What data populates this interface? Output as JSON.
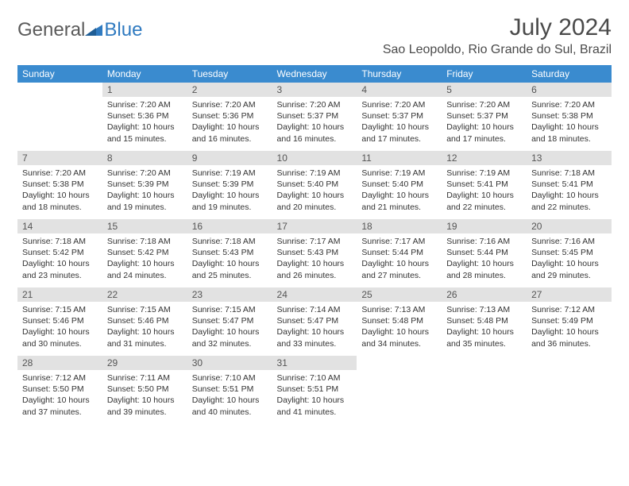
{
  "brand": {
    "part1": "General",
    "part2": "Blue"
  },
  "title": "July 2024",
  "location": "Sao Leopoldo, Rio Grande do Sul, Brazil",
  "colors": {
    "header_bg": "#3a8bcf",
    "daynum_bg": "#e2e2e2",
    "brand_blue": "#2f7ac0",
    "text": "#333333"
  },
  "dow": [
    "Sunday",
    "Monday",
    "Tuesday",
    "Wednesday",
    "Thursday",
    "Friday",
    "Saturday"
  ],
  "weeks": [
    [
      {
        "n": "",
        "sr": "",
        "ss": "",
        "dl": ""
      },
      {
        "n": "1",
        "sr": "Sunrise: 7:20 AM",
        "ss": "Sunset: 5:36 PM",
        "dl": "Daylight: 10 hours and 15 minutes."
      },
      {
        "n": "2",
        "sr": "Sunrise: 7:20 AM",
        "ss": "Sunset: 5:36 PM",
        "dl": "Daylight: 10 hours and 16 minutes."
      },
      {
        "n": "3",
        "sr": "Sunrise: 7:20 AM",
        "ss": "Sunset: 5:37 PM",
        "dl": "Daylight: 10 hours and 16 minutes."
      },
      {
        "n": "4",
        "sr": "Sunrise: 7:20 AM",
        "ss": "Sunset: 5:37 PM",
        "dl": "Daylight: 10 hours and 17 minutes."
      },
      {
        "n": "5",
        "sr": "Sunrise: 7:20 AM",
        "ss": "Sunset: 5:37 PM",
        "dl": "Daylight: 10 hours and 17 minutes."
      },
      {
        "n": "6",
        "sr": "Sunrise: 7:20 AM",
        "ss": "Sunset: 5:38 PM",
        "dl": "Daylight: 10 hours and 18 minutes."
      }
    ],
    [
      {
        "n": "7",
        "sr": "Sunrise: 7:20 AM",
        "ss": "Sunset: 5:38 PM",
        "dl": "Daylight: 10 hours and 18 minutes."
      },
      {
        "n": "8",
        "sr": "Sunrise: 7:20 AM",
        "ss": "Sunset: 5:39 PM",
        "dl": "Daylight: 10 hours and 19 minutes."
      },
      {
        "n": "9",
        "sr": "Sunrise: 7:19 AM",
        "ss": "Sunset: 5:39 PM",
        "dl": "Daylight: 10 hours and 19 minutes."
      },
      {
        "n": "10",
        "sr": "Sunrise: 7:19 AM",
        "ss": "Sunset: 5:40 PM",
        "dl": "Daylight: 10 hours and 20 minutes."
      },
      {
        "n": "11",
        "sr": "Sunrise: 7:19 AM",
        "ss": "Sunset: 5:40 PM",
        "dl": "Daylight: 10 hours and 21 minutes."
      },
      {
        "n": "12",
        "sr": "Sunrise: 7:19 AM",
        "ss": "Sunset: 5:41 PM",
        "dl": "Daylight: 10 hours and 22 minutes."
      },
      {
        "n": "13",
        "sr": "Sunrise: 7:18 AM",
        "ss": "Sunset: 5:41 PM",
        "dl": "Daylight: 10 hours and 22 minutes."
      }
    ],
    [
      {
        "n": "14",
        "sr": "Sunrise: 7:18 AM",
        "ss": "Sunset: 5:42 PM",
        "dl": "Daylight: 10 hours and 23 minutes."
      },
      {
        "n": "15",
        "sr": "Sunrise: 7:18 AM",
        "ss": "Sunset: 5:42 PM",
        "dl": "Daylight: 10 hours and 24 minutes."
      },
      {
        "n": "16",
        "sr": "Sunrise: 7:18 AM",
        "ss": "Sunset: 5:43 PM",
        "dl": "Daylight: 10 hours and 25 minutes."
      },
      {
        "n": "17",
        "sr": "Sunrise: 7:17 AM",
        "ss": "Sunset: 5:43 PM",
        "dl": "Daylight: 10 hours and 26 minutes."
      },
      {
        "n": "18",
        "sr": "Sunrise: 7:17 AM",
        "ss": "Sunset: 5:44 PM",
        "dl": "Daylight: 10 hours and 27 minutes."
      },
      {
        "n": "19",
        "sr": "Sunrise: 7:16 AM",
        "ss": "Sunset: 5:44 PM",
        "dl": "Daylight: 10 hours and 28 minutes."
      },
      {
        "n": "20",
        "sr": "Sunrise: 7:16 AM",
        "ss": "Sunset: 5:45 PM",
        "dl": "Daylight: 10 hours and 29 minutes."
      }
    ],
    [
      {
        "n": "21",
        "sr": "Sunrise: 7:15 AM",
        "ss": "Sunset: 5:46 PM",
        "dl": "Daylight: 10 hours and 30 minutes."
      },
      {
        "n": "22",
        "sr": "Sunrise: 7:15 AM",
        "ss": "Sunset: 5:46 PM",
        "dl": "Daylight: 10 hours and 31 minutes."
      },
      {
        "n": "23",
        "sr": "Sunrise: 7:15 AM",
        "ss": "Sunset: 5:47 PM",
        "dl": "Daylight: 10 hours and 32 minutes."
      },
      {
        "n": "24",
        "sr": "Sunrise: 7:14 AM",
        "ss": "Sunset: 5:47 PM",
        "dl": "Daylight: 10 hours and 33 minutes."
      },
      {
        "n": "25",
        "sr": "Sunrise: 7:13 AM",
        "ss": "Sunset: 5:48 PM",
        "dl": "Daylight: 10 hours and 34 minutes."
      },
      {
        "n": "26",
        "sr": "Sunrise: 7:13 AM",
        "ss": "Sunset: 5:48 PM",
        "dl": "Daylight: 10 hours and 35 minutes."
      },
      {
        "n": "27",
        "sr": "Sunrise: 7:12 AM",
        "ss": "Sunset: 5:49 PM",
        "dl": "Daylight: 10 hours and 36 minutes."
      }
    ],
    [
      {
        "n": "28",
        "sr": "Sunrise: 7:12 AM",
        "ss": "Sunset: 5:50 PM",
        "dl": "Daylight: 10 hours and 37 minutes."
      },
      {
        "n": "29",
        "sr": "Sunrise: 7:11 AM",
        "ss": "Sunset: 5:50 PM",
        "dl": "Daylight: 10 hours and 39 minutes."
      },
      {
        "n": "30",
        "sr": "Sunrise: 7:10 AM",
        "ss": "Sunset: 5:51 PM",
        "dl": "Daylight: 10 hours and 40 minutes."
      },
      {
        "n": "31",
        "sr": "Sunrise: 7:10 AM",
        "ss": "Sunset: 5:51 PM",
        "dl": "Daylight: 10 hours and 41 minutes."
      },
      {
        "n": "",
        "sr": "",
        "ss": "",
        "dl": ""
      },
      {
        "n": "",
        "sr": "",
        "ss": "",
        "dl": ""
      },
      {
        "n": "",
        "sr": "",
        "ss": "",
        "dl": ""
      }
    ]
  ]
}
